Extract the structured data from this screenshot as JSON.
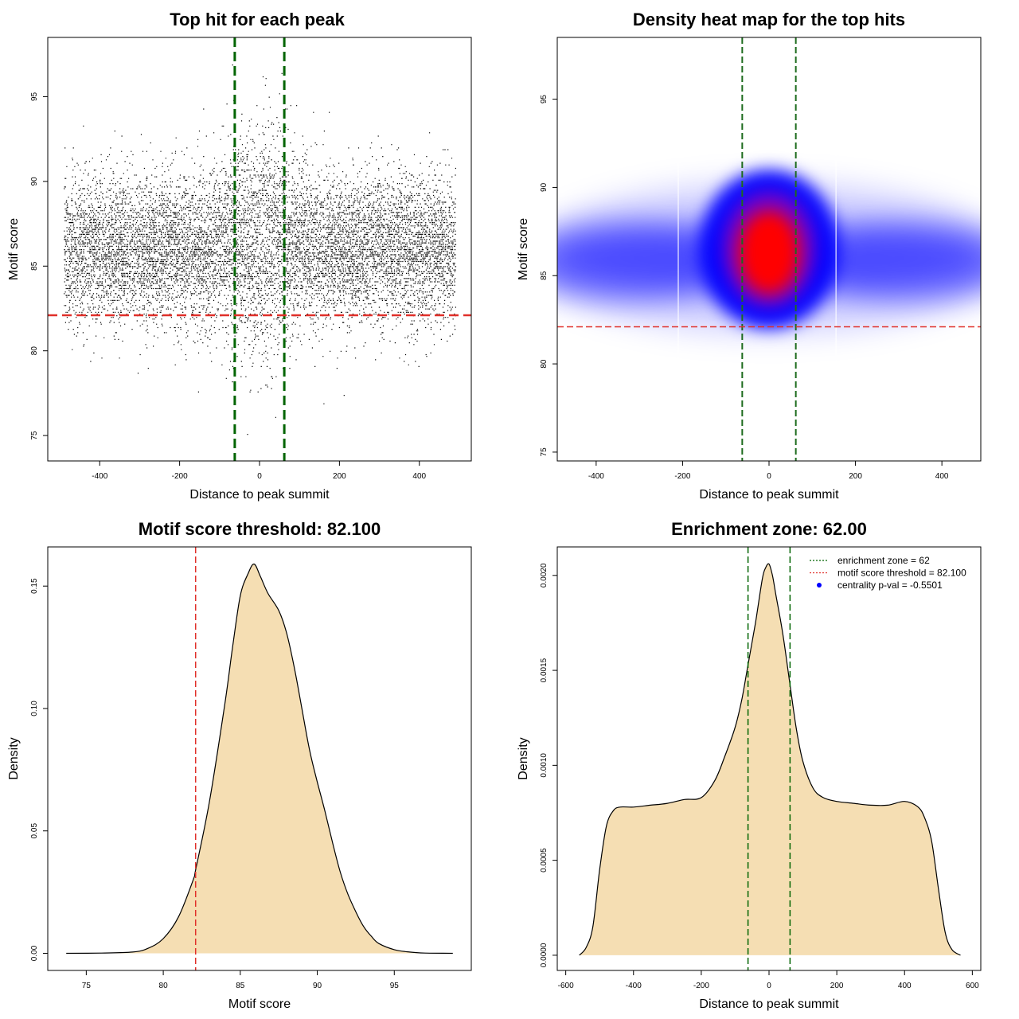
{
  "chart_data": [
    {
      "type": "scatter",
      "title": "Top hit for each peak",
      "xlabel": "Distance to peak summit",
      "ylabel": "Motif score",
      "xlim": [
        -530,
        530
      ],
      "ylim": [
        73.5,
        98.5
      ],
      "xticks": [
        -400,
        -200,
        0,
        200,
        400
      ],
      "yticks": [
        75,
        80,
        85,
        90,
        95
      ],
      "x_range": [
        -490,
        490
      ],
      "score_center": 86.0,
      "score_sd": 2.5,
      "n_points": 11000,
      "vlines": [
        -62,
        62
      ],
      "hline": 82.1,
      "vline_color": "#006400",
      "hline_color": "#e0302a",
      "point_color": "#000000"
    },
    {
      "type": "heatmap",
      "title": "Density heat map for the top hits",
      "xlabel": "Distance to peak summit",
      "ylabel": "Motif score",
      "xlim": [
        -490,
        490
      ],
      "ylim": [
        74.5,
        98.5
      ],
      "xticks": [
        -400,
        -200,
        0,
        200,
        400
      ],
      "yticks": [
        75,
        80,
        85,
        90,
        95
      ],
      "hotspot": {
        "x": 0,
        "y": 86.5
      },
      "vlines": [
        -62,
        62
      ],
      "hline": 82.1,
      "low_color": "#ffffff",
      "mid_color": "#0000ff",
      "high_color": "#ff0000"
    },
    {
      "type": "area",
      "title": "Motif score threshold: 82.100",
      "xlabel": "Motif score",
      "ylabel": "Density",
      "xlim": [
        72.5,
        100
      ],
      "ylim": [
        -0.007,
        0.166
      ],
      "xticks": [
        75,
        80,
        85,
        90,
        95
      ],
      "yticks": [
        0.0,
        0.05,
        0.1,
        0.15
      ],
      "ytick_labels": [
        "0.00",
        "0.05",
        "0.10",
        "0.15"
      ],
      "x": [
        73.7,
        76,
        78,
        79,
        80,
        81,
        82,
        82.1,
        83,
        84,
        84.5,
        85,
        85.5,
        85.9,
        86.3,
        86.8,
        87.5,
        88,
        88.5,
        89,
        89.5,
        90,
        90.5,
        91,
        91.5,
        92,
        92.5,
        93,
        93.5,
        94,
        95,
        96,
        97,
        98.8
      ],
      "y": [
        0,
        0.0001,
        0.0005,
        0.002,
        0.006,
        0.015,
        0.031,
        0.034,
        0.062,
        0.102,
        0.125,
        0.146,
        0.155,
        0.159,
        0.154,
        0.147,
        0.14,
        0.131,
        0.117,
        0.1,
        0.083,
        0.07,
        0.058,
        0.045,
        0.033,
        0.024,
        0.017,
        0.011,
        0.007,
        0.004,
        0.0015,
        0.0005,
        0.0001,
        0
      ],
      "vline": 82.1,
      "fill_color": "#f5deb3",
      "vline_color": "#e0302a"
    },
    {
      "type": "area",
      "title": "Enrichment zone: 62.00",
      "xlabel": "Distance to peak summit",
      "ylabel": "Density",
      "xlim": [
        -625,
        625
      ],
      "ylim": [
        -8e-05,
        0.00215
      ],
      "xticks": [
        -600,
        -400,
        -200,
        0,
        200,
        400,
        600
      ],
      "yticks": [
        0.0,
        0.0005,
        0.001,
        0.0015,
        0.002
      ],
      "ytick_labels": [
        "0.0000",
        "0.0005",
        "0.0010",
        "0.0015",
        "0.0020"
      ],
      "x": [
        -560,
        -540,
        -520,
        -500,
        -480,
        -460,
        -440,
        -400,
        -350,
        -300,
        -250,
        -200,
        -160,
        -130,
        -100,
        -80,
        -60,
        -40,
        -20,
        -10,
        0,
        10,
        20,
        40,
        60,
        80,
        100,
        130,
        160,
        200,
        250,
        300,
        350,
        400,
        440,
        460,
        480,
        500,
        520,
        540,
        565
      ],
      "y": [
        0,
        4e-05,
        0.00015,
        0.00045,
        0.00068,
        0.00076,
        0.00078,
        0.00078,
        0.00079,
        0.0008,
        0.00082,
        0.00083,
        0.00092,
        0.00105,
        0.0012,
        0.00135,
        0.00155,
        0.00175,
        0.00198,
        0.00204,
        0.00206,
        0.002,
        0.0019,
        0.0017,
        0.00145,
        0.0012,
        0.00102,
        0.00088,
        0.00083,
        0.00081,
        0.0008,
        0.00079,
        0.00079,
        0.00081,
        0.00078,
        0.00072,
        0.0006,
        0.00035,
        0.00012,
        3e-05,
        0
      ],
      "vlines": [
        -62,
        62
      ],
      "fill_color": "#f5deb3",
      "vline_color": "#006400",
      "legend_position": "top-right",
      "legend": [
        {
          "label": "enrichment zone = 62",
          "color": "#006400",
          "marker": "dotted-line"
        },
        {
          "label": "motif score threshold = 82.100",
          "color": "#e0302a",
          "marker": "dotted-line"
        },
        {
          "label": "centrality p-val = -0.5501",
          "color": "#0000ff",
          "marker": "dot"
        }
      ]
    }
  ]
}
